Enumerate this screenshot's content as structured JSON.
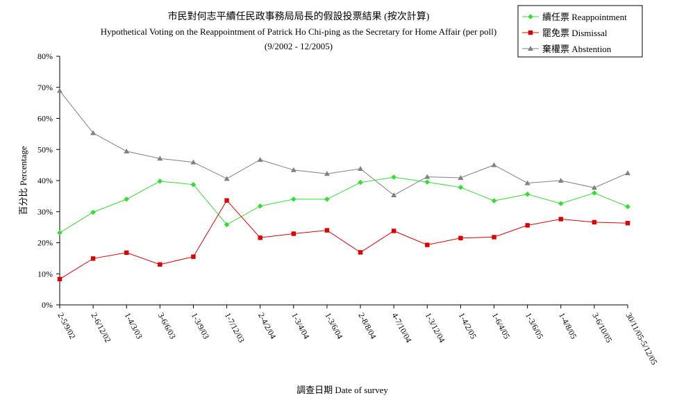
{
  "chart_data": {
    "type": "line",
    "title": "市民對何志平續任民政事務局局長的假設投票結果 (按次計算)",
    "subtitle": "Hypothetical Voting on the Reappointment of Patrick Ho Chi-ping as the Secretary for Home Affair (per poll)",
    "period": "(9/2002 - 12/2005)",
    "xlabel": "調查日期 Date of survey",
    "ylabel": "百分比 Percentage",
    "ylim": [
      0,
      80
    ],
    "yticks": [
      "0%",
      "10%",
      "20%",
      "30%",
      "40%",
      "50%",
      "60%",
      "70%",
      "80%"
    ],
    "legend_position": "top-right",
    "categories": [
      "2-5/9/02",
      "2-6/12/02",
      "1-4/3/03",
      "3-6/6/03",
      "1-3/9/03",
      "1-7/12/03",
      "2-4/2/04",
      "1-3/4/04",
      "1-3/6/04",
      "2-8/8/04",
      "4-7/10/04",
      "1-3/12/04",
      "1-4/2/05",
      "1-6/4/05",
      "1-3/6/05",
      "1-4/8/05",
      "3-6/10/05",
      "30/11/05-5/12/05"
    ],
    "series": [
      {
        "name": "續任票 Reappointment",
        "color": "#33dd33",
        "marker": "diamond",
        "values": [
          23.2,
          29.8,
          34.0,
          39.8,
          38.7,
          25.8,
          31.8,
          34.0,
          34.0,
          39.4,
          41.1,
          39.5,
          37.8,
          33.5,
          35.6,
          32.6,
          36.0,
          31.6
        ]
      },
      {
        "name": "罷免票 Dismissal",
        "color": "#dd0000",
        "marker": "square",
        "values": [
          8.3,
          14.9,
          16.8,
          13.0,
          15.5,
          33.6,
          21.6,
          22.9,
          24.0,
          16.9,
          23.8,
          19.3,
          21.5,
          21.8,
          25.6,
          27.6,
          26.6,
          26.3
        ]
      },
      {
        "name": "棄權票 Abstention",
        "color": "#808080",
        "marker": "triangle",
        "values": [
          68.9,
          55.3,
          49.4,
          47.1,
          45.9,
          40.6,
          46.7,
          43.4,
          42.2,
          43.8,
          35.3,
          41.2,
          40.9,
          45.0,
          39.2,
          40.0,
          37.7,
          42.4
        ]
      }
    ]
  }
}
